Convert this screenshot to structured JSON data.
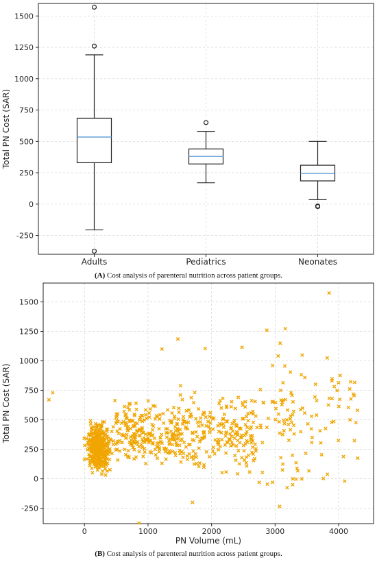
{
  "chart_data": [
    {
      "type": "box",
      "panel": "A",
      "ylabel": "Total PN Cost (SAR)",
      "ylim": [
        -400,
        1600
      ],
      "yticks": [
        -250,
        0,
        250,
        500,
        750,
        1000,
        1250,
        1500
      ],
      "categories": [
        "Adults",
        "Pediatrics",
        "Neonates"
      ],
      "boxes": [
        {
          "category": "Adults",
          "whisker_low": -205,
          "q1": 330,
          "median": 535,
          "q3": 685,
          "whisker_high": 1190,
          "outliers": [
            -375,
            1260,
            1570
          ]
        },
        {
          "category": "Pediatrics",
          "whisker_low": 170,
          "q1": 320,
          "median": 380,
          "q3": 440,
          "whisker_high": 580,
          "outliers": [
            650
          ]
        },
        {
          "category": "Neonates",
          "whisker_low": 35,
          "q1": 185,
          "median": 245,
          "q3": 310,
          "whisker_high": 500,
          "outliers": [
            -15,
            -20
          ]
        }
      ],
      "grid": true,
      "median_color": "#6fa8dc"
    },
    {
      "type": "scatter",
      "panel": "B",
      "xlabel": "PN Volume (mL)",
      "ylabel": "Total PN Cost (SAR)",
      "xlim": [
        -650,
        4550
      ],
      "ylim": [
        -380,
        1660
      ],
      "xticks": [
        0,
        1000,
        2000,
        3000,
        4000
      ],
      "yticks": [
        -250,
        0,
        250,
        500,
        750,
        1000,
        1250,
        1500
      ],
      "grid": true,
      "marker": "x",
      "color": "#f0a500",
      "clusters": [
        {
          "x_range": [
            -100,
            450
          ],
          "y_center": 260,
          "y_spread": 90,
          "count": 380
        },
        {
          "x_range": [
            450,
            1500
          ],
          "y_center": 390,
          "y_spread": 110,
          "count": 240
        },
        {
          "x_range": [
            1500,
            2700
          ],
          "y_center": 400,
          "y_spread": 170,
          "count": 220
        },
        {
          "x_range": [
            2700,
            4300
          ],
          "y_center": 480,
          "y_spread": 270,
          "count": 110
        }
      ],
      "points": [
        [
          -560,
          670
        ],
        [
          -500,
          730
        ],
        [
          860,
          -375
        ],
        [
          1700,
          -200
        ],
        [
          3850,
          1575
        ],
        [
          2870,
          1260
        ],
        [
          1470,
          1185
        ],
        [
          3080,
          1150
        ],
        [
          2480,
          1115
        ],
        [
          1900,
          1105
        ],
        [
          1220,
          1100
        ],
        [
          4180,
          500
        ],
        [
          4300,
          175
        ],
        [
          3280,
          0
        ],
        [
          4000,
          815
        ],
        [
          3820,
          1025
        ],
        [
          2750,
          -30
        ],
        [
          2960,
          -30
        ],
        [
          3420,
          0
        ]
      ]
    }
  ],
  "captions": {
    "a_label": "(A)",
    "a_text": " Cost analysis of parenteral nutrition across patient groups.",
    "b_label": "(B)",
    "b_text": " Cost analysis of parenteral nutrition across patient groups."
  }
}
